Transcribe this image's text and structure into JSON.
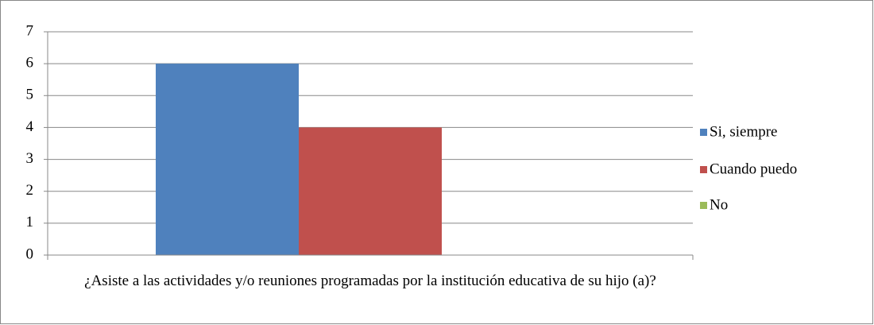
{
  "chart_data": {
    "type": "bar",
    "categories": [
      "¿Asiste a las actividades y/o reuniones programadas por la institución educativa de su hijo (a)?"
    ],
    "series": [
      {
        "name": "Si, siempre",
        "color": "#4f81bd",
        "values": [
          6
        ]
      },
      {
        "name": "Cuando puedo",
        "color": "#c0504d",
        "values": [
          4
        ]
      },
      {
        "name": "No",
        "color": "#9bbb59",
        "values": [
          0
        ]
      }
    ],
    "ylim": [
      0,
      7
    ],
    "yticks": [
      0,
      1,
      2,
      3,
      4,
      5,
      6,
      7
    ],
    "grid": true,
    "legend": "right"
  }
}
